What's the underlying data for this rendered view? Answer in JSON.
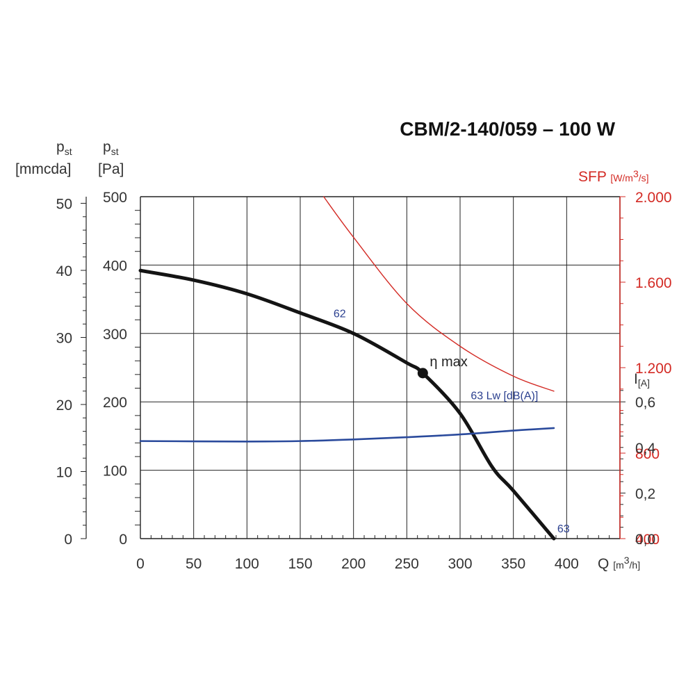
{
  "title": "CBM/2-140/059 – 100 W",
  "axes": {
    "left_mm": {
      "symbol": "p",
      "sub": "st",
      "unit": "[mmcda]",
      "ticks": [
        "0",
        "10",
        "20",
        "30",
        "40",
        "50"
      ]
    },
    "left_pa": {
      "symbol": "p",
      "sub": "st",
      "unit": "[Pa]",
      "ticks": [
        "0",
        "100",
        "200",
        "300",
        "400",
        "500"
      ]
    },
    "x": {
      "label": "Q",
      "unit_open": "[m",
      "unit_sup": "3",
      "unit_close": "/h]",
      "ticks": [
        "0",
        "50",
        "100",
        "150",
        "200",
        "250",
        "300",
        "350",
        "400"
      ]
    },
    "sfp": {
      "label": "SFP",
      "unit_open": "[W/m",
      "unit_sup": "3",
      "unit_close": "/s]",
      "ticks": [
        "400",
        "800",
        "1.200",
        "1.600",
        "2.000"
      ]
    },
    "current": {
      "symbol": "I",
      "sub": "[A]",
      "ticks": [
        "0,0",
        "0,2",
        "0,4",
        "0,6"
      ]
    }
  },
  "colors": {
    "pressure": "#141414",
    "current": "#2a4a9c",
    "sfp": "#d32a24",
    "grid": "#222222",
    "label_blue": "#2a3f8f"
  },
  "annotations": {
    "eta_max": "η max",
    "lw_label": "63 Lw [dB(A)]",
    "lw_62": "62",
    "lw_63": "63"
  },
  "chart_data": {
    "type": "line",
    "title": "CBM/2-140/059 – 100 W",
    "x_label": "Q [m3/h]",
    "x_range": [
      0,
      450
    ],
    "grid": true,
    "series": [
      {
        "axis": "pressure",
        "unit": "Pa",
        "y_range": [
          0,
          500
        ],
        "x": [
          0,
          50,
          100,
          150,
          200,
          250,
          265,
          300,
          330,
          350,
          388
        ],
        "y": [
          392,
          378,
          358,
          330,
          300,
          257,
          242,
          183,
          105,
          70,
          0
        ]
      },
      {
        "axis": "current",
        "unit": "A",
        "y_range": [
          0,
          1.5
        ],
        "x": [
          0,
          100,
          150,
          200,
          250,
          300,
          350,
          388
        ],
        "y": [
          0.428,
          0.426,
          0.428,
          0.435,
          0.445,
          0.457,
          0.474,
          0.485
        ]
      },
      {
        "axis": "sfp",
        "unit": "W/m3/s",
        "y_range": [
          400,
          2000
        ],
        "x": [
          172,
          200,
          250,
          300,
          350,
          388
        ],
        "y": [
          2000,
          1810,
          1500,
          1300,
          1160,
          1090
        ]
      }
    ],
    "markers": [
      {
        "label": "η max",
        "x": 265,
        "y": 242
      }
    ],
    "labels": [
      {
        "text": "62",
        "x": 187,
        "y": 330
      },
      {
        "text": "63 Lw [dB(A)]",
        "x": 310,
        "y": 210
      },
      {
        "text": "63",
        "x": 397,
        "y": 15
      }
    ]
  }
}
